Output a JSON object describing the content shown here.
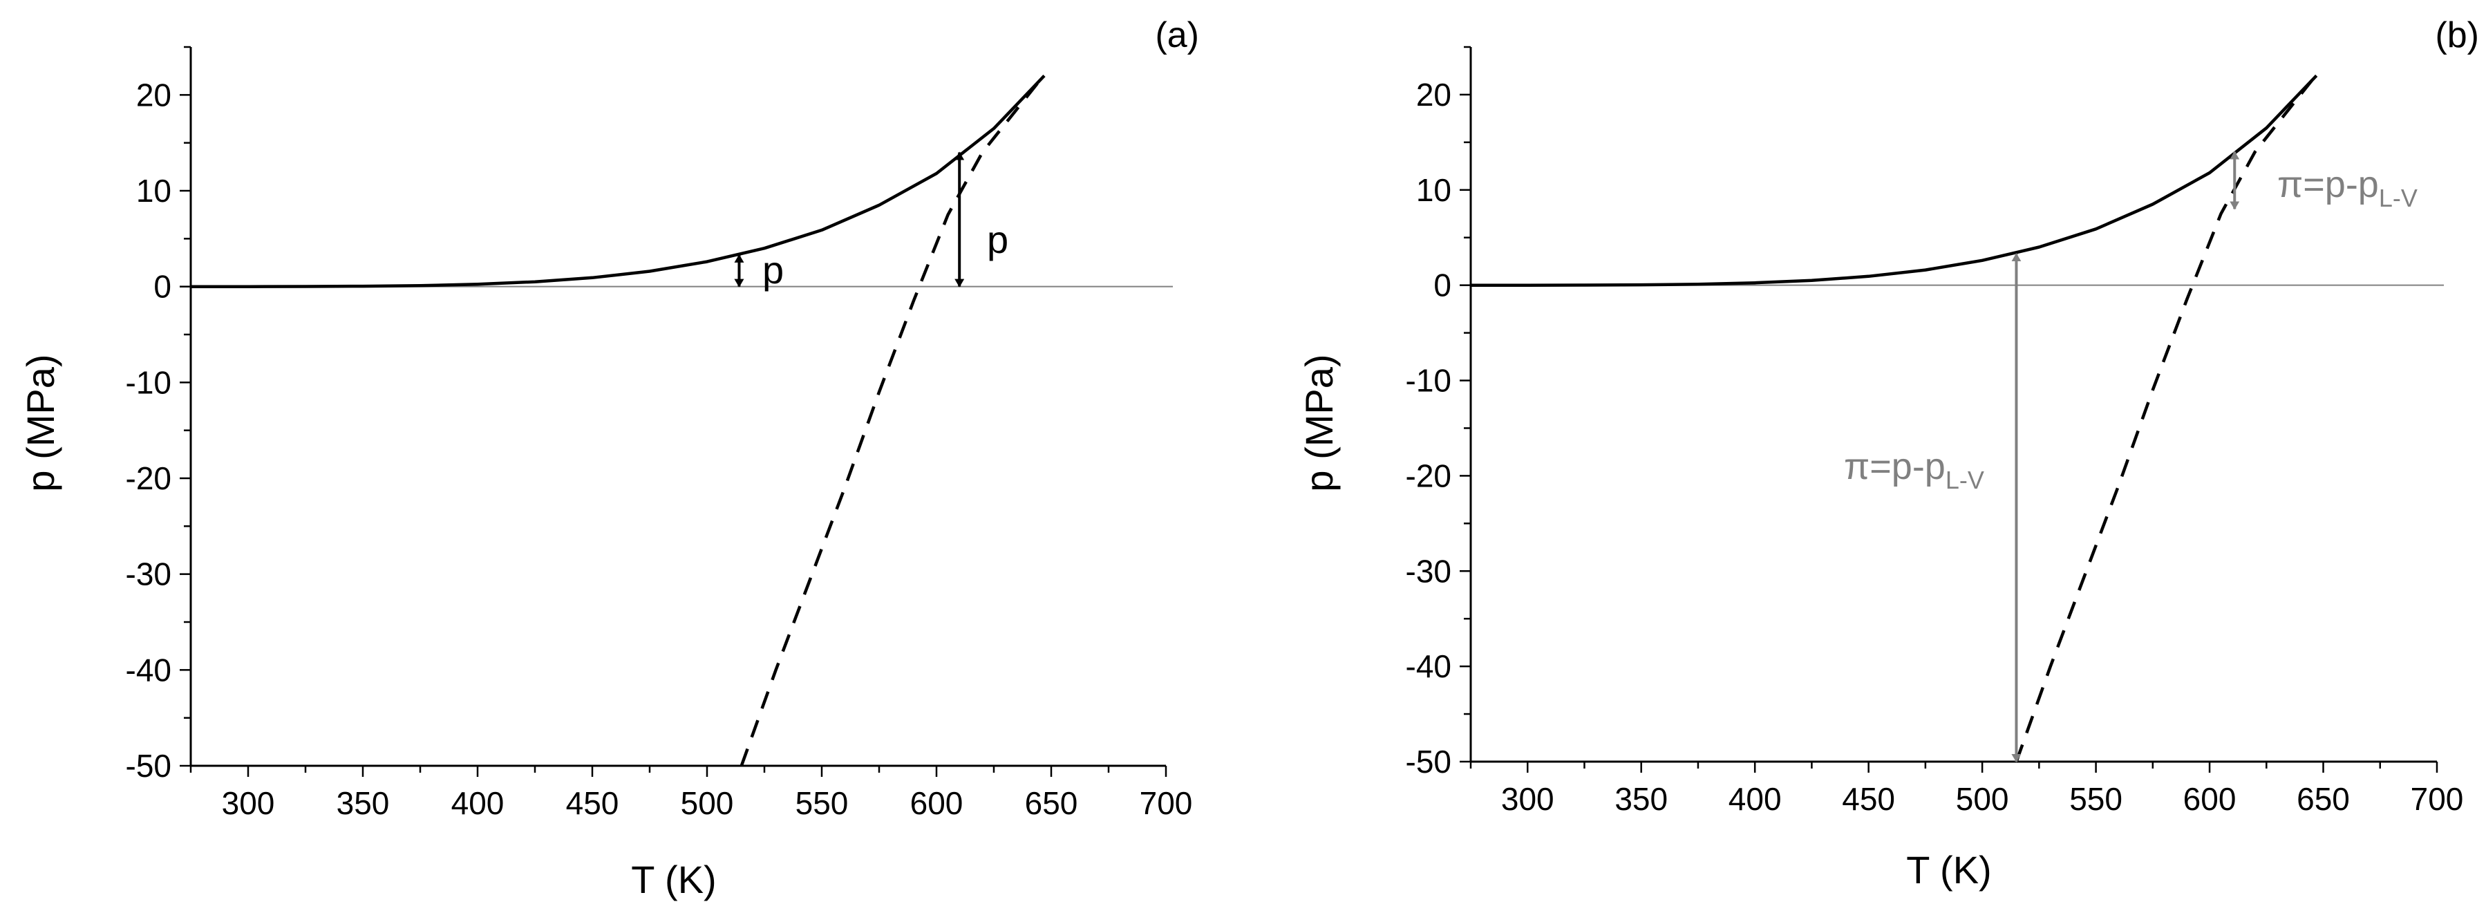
{
  "chart_data": [
    {
      "type": "line",
      "panel_label": "(a)",
      "xlabel": "T (K)",
      "ylabel": "p (MPa)",
      "xlim": [
        275,
        700
      ],
      "ylim": [
        -50,
        25
      ],
      "x_ticks": [
        300,
        350,
        400,
        450,
        500,
        550,
        600,
        650,
        700
      ],
      "x_tick_labels": [
        "300",
        "350",
        "400",
        "450",
        "500",
        "550",
        "600",
        "650",
        "700"
      ],
      "y_ticks": [
        20,
        10,
        0,
        -10,
        -20,
        -30,
        -40,
        -50
      ],
      "y_tick_labels": [
        "20",
        "10",
        "0",
        "-10",
        "-20",
        "-30",
        "-40",
        "-50"
      ],
      "grid": false,
      "zero_line": true,
      "series": [
        {
          "style": "solid",
          "color": "#000000",
          "x": [
            275,
            300,
            325,
            350,
            375,
            400,
            425,
            450,
            475,
            500,
            525,
            550,
            575,
            600,
            625,
            647
          ],
          "y": [
            0.0,
            0.0,
            0.01,
            0.04,
            0.1,
            0.25,
            0.5,
            0.93,
            1.6,
            2.6,
            4.0,
            5.9,
            8.5,
            11.8,
            16.5,
            22.0
          ]
        },
        {
          "style": "dashed",
          "color": "#000000",
          "x": [
            515,
            530,
            545,
            560,
            575,
            590,
            605,
            620,
            635,
            645
          ],
          "y": [
            -50.0,
            -40.0,
            -30.5,
            -21.0,
            -11.0,
            -1.5,
            7.5,
            14.0,
            18.5,
            21.5
          ]
        }
      ],
      "arrows": [
        {
          "x": 514,
          "y_from": 0,
          "y_to": 3.3,
          "color": "#000000",
          "label": "p"
        },
        {
          "x": 610,
          "y_from": 0,
          "y_to": 14.0,
          "color": "#000000",
          "label": "p"
        }
      ]
    },
    {
      "type": "line",
      "panel_label": "(b)",
      "xlabel": "T (K)",
      "ylabel": "p (MPa)",
      "xlim": [
        275,
        700
      ],
      "ylim": [
        -50,
        25
      ],
      "x_ticks": [
        300,
        350,
        400,
        450,
        500,
        550,
        600,
        650,
        700
      ],
      "x_tick_labels": [
        "300",
        "350",
        "400",
        "450",
        "500",
        "550",
        "600",
        "650",
        "700"
      ],
      "y_ticks": [
        20,
        10,
        0,
        -10,
        -20,
        -30,
        -40,
        -50
      ],
      "y_tick_labels": [
        "20",
        "10",
        "0",
        "-10",
        "-20",
        "-30",
        "-40",
        "-50"
      ],
      "grid": false,
      "zero_line": true,
      "series": [
        {
          "style": "solid",
          "color": "#000000",
          "x": [
            275,
            300,
            325,
            350,
            375,
            400,
            425,
            450,
            475,
            500,
            525,
            550,
            575,
            600,
            625,
            647
          ],
          "y": [
            0.0,
            0.0,
            0.01,
            0.04,
            0.1,
            0.25,
            0.5,
            0.93,
            1.6,
            2.6,
            4.0,
            5.9,
            8.5,
            11.8,
            16.5,
            22.0
          ]
        },
        {
          "style": "dashed",
          "color": "#000000",
          "x": [
            515,
            530,
            545,
            560,
            575,
            590,
            605,
            620,
            635,
            645
          ],
          "y": [
            -50.0,
            -40.0,
            -30.5,
            -21.0,
            -11.0,
            -1.5,
            7.5,
            14.0,
            18.5,
            21.5
          ]
        }
      ],
      "arrows": [
        {
          "x": 515,
          "y_from": -50,
          "y_to": 3.3,
          "color": "#808080",
          "label_main": "π=p-p",
          "label_sub": "L-V"
        },
        {
          "x": 611,
          "y_from": 8,
          "y_to": 14.0,
          "color": "#808080",
          "label_main": "π=p-p",
          "label_sub": "L-V"
        }
      ]
    }
  ]
}
